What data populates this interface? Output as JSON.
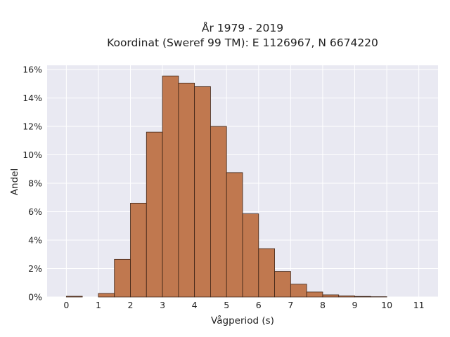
{
  "chart_data": {
    "type": "bar",
    "title_line1": "År 1979 - 2019",
    "title_line2": "Koordinat (Sweref 99 TM): E 1126967, N 6674220",
    "xlabel": "Vågperiod (s)",
    "ylabel": "Andel",
    "bin_width": 0.5,
    "xlim": [
      -0.6,
      11.6
    ],
    "ylim": [
      0,
      16.3
    ],
    "xticks": [
      0,
      1,
      2,
      3,
      4,
      5,
      6,
      7,
      8,
      9,
      10,
      11
    ],
    "xtick_labels": [
      "0",
      "1",
      "2",
      "3",
      "4",
      "5",
      "6",
      "7",
      "8",
      "9",
      "10",
      "11"
    ],
    "yticks": [
      0,
      2,
      4,
      6,
      8,
      10,
      12,
      14,
      16
    ],
    "ytick_labels": [
      "0%",
      "2%",
      "4%",
      "6%",
      "8%",
      "10%",
      "12%",
      "14%",
      "16%"
    ],
    "grid": true,
    "bins": [
      {
        "x0": 0.0,
        "value": 0.05
      },
      {
        "x0": 0.5,
        "value": 0.0
      },
      {
        "x0": 1.0,
        "value": 0.25
      },
      {
        "x0": 1.5,
        "value": 2.65
      },
      {
        "x0": 2.0,
        "value": 6.6
      },
      {
        "x0": 2.5,
        "value": 11.6
      },
      {
        "x0": 3.0,
        "value": 15.55
      },
      {
        "x0": 3.5,
        "value": 15.05
      },
      {
        "x0": 4.0,
        "value": 14.8
      },
      {
        "x0": 4.5,
        "value": 12.0
      },
      {
        "x0": 5.0,
        "value": 8.75
      },
      {
        "x0": 5.5,
        "value": 5.85
      },
      {
        "x0": 6.0,
        "value": 3.4
      },
      {
        "x0": 6.5,
        "value": 1.8
      },
      {
        "x0": 7.0,
        "value": 0.9
      },
      {
        "x0": 7.5,
        "value": 0.35
      },
      {
        "x0": 8.0,
        "value": 0.15
      },
      {
        "x0": 8.5,
        "value": 0.08
      },
      {
        "x0": 9.0,
        "value": 0.04
      },
      {
        "x0": 9.5,
        "value": 0.02
      }
    ],
    "colors": {
      "bar_fill": "#c0784f",
      "bar_stroke": "#3d2316",
      "plot_bg": "#e9e9f2",
      "grid": "#ffffff"
    }
  }
}
